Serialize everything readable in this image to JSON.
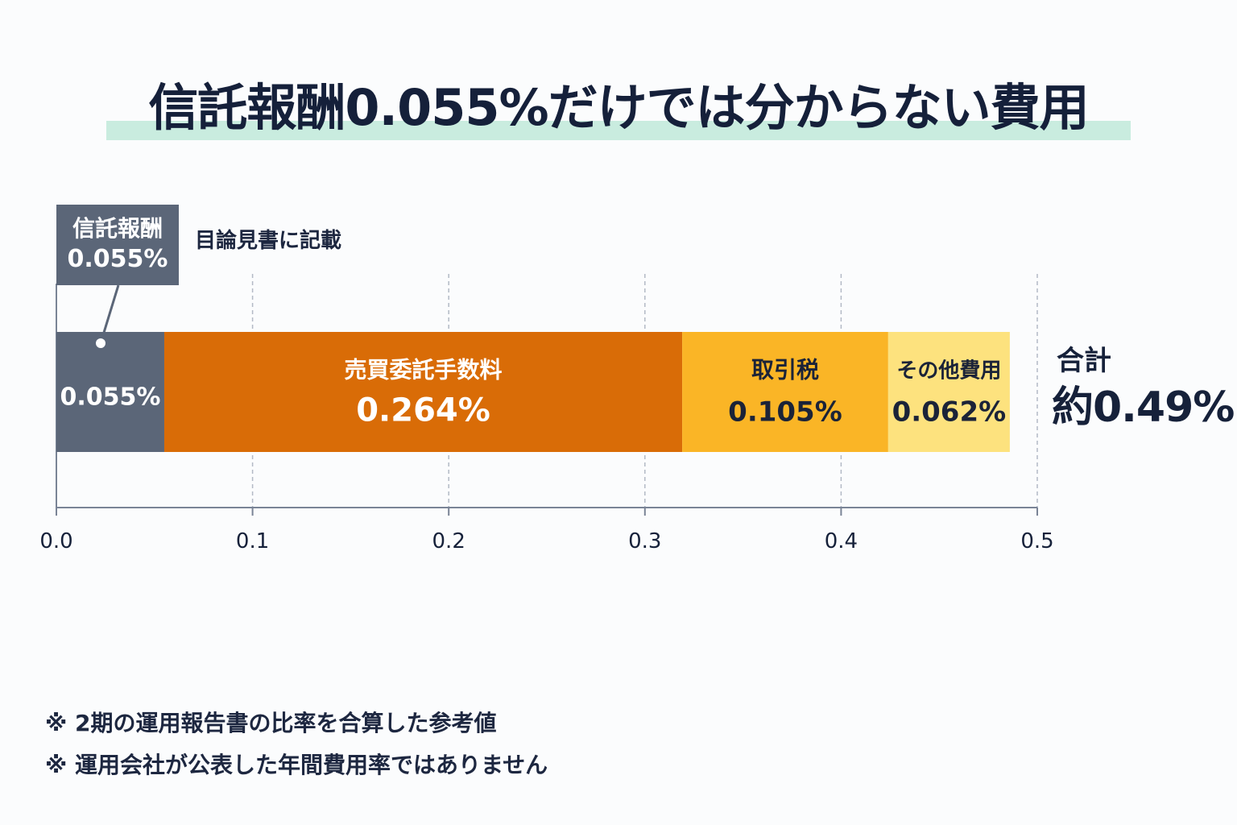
{
  "chart_data": {
    "type": "bar",
    "orientation": "horizontal-stacked",
    "title": "信託報酬0.055%だけでは分からない費用",
    "xlim": [
      0.0,
      0.5
    ],
    "grid": true,
    "x_ticks": [
      "0.0",
      "0.1",
      "0.2",
      "0.3",
      "0.4",
      "0.5"
    ],
    "series": [
      {
        "name": "",
        "value": 0.055,
        "label": "0.055%",
        "color": "#5b6678",
        "text_color": "#ffffff"
      },
      {
        "name": "売買委託手数料",
        "value": 0.264,
        "label": "0.264%",
        "color": "#d96c07",
        "text_color": "#ffffff"
      },
      {
        "name": "取引税",
        "value": 0.105,
        "label": "0.105%",
        "color": "#fab526",
        "text_color": "#1b2338"
      },
      {
        "name": "その他費用",
        "value": 0.062,
        "label": "0.062%",
        "color": "#fde27e",
        "text_color": "#1b2338"
      }
    ],
    "callout": {
      "title": "信託報酬",
      "value": "0.055%",
      "note": "目論見書に記載"
    },
    "total": {
      "label": "合計",
      "value": "約0.49%"
    }
  },
  "notes": [
    "※ 2期の運用報告書の比率を合算した参考値",
    "※ 運用会社が公表した年間費用率ではありません"
  ]
}
